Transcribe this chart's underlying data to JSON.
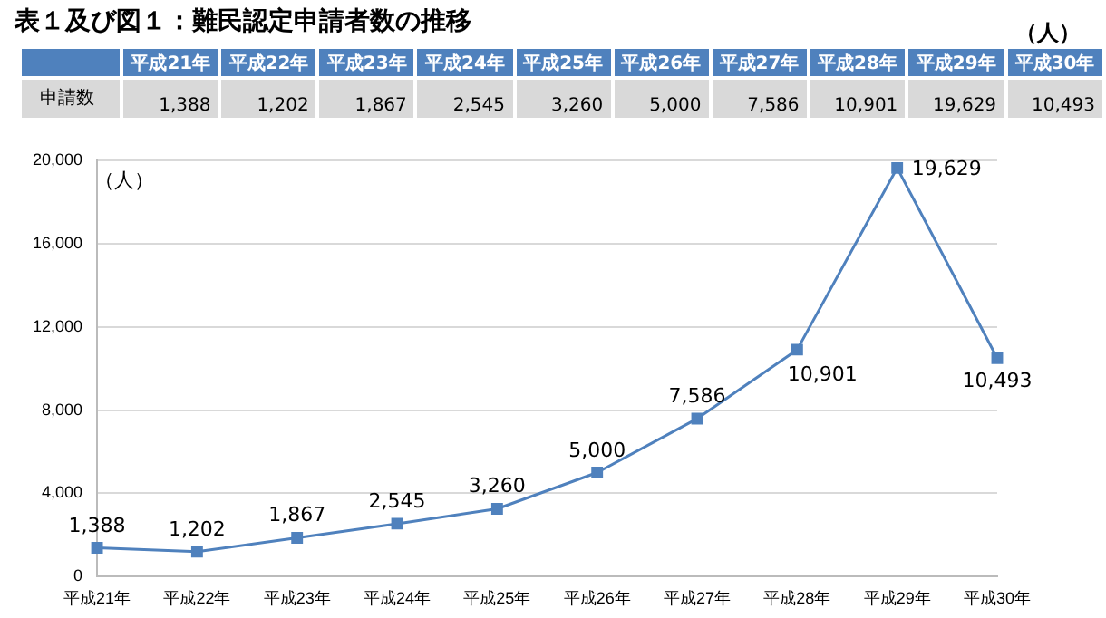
{
  "chart_data": {
    "type": "line",
    "title": "表１及び図１：難民認定申請者数の推移",
    "ylabel": "（人）",
    "annotations": [
      "（人）",
      "申請数"
    ],
    "categories": [
      "平成21年",
      "平成22年",
      "平成23年",
      "平成24年",
      "平成25年",
      "平成26年",
      "平成27年",
      "平成28年",
      "平成29年",
      "平成30年"
    ],
    "series": [
      {
        "color": "#4f81bd",
        "values": [
          1388,
          1202,
          1867,
          2545,
          3260,
          5000,
          7586,
          10901,
          19629,
          10493
        ],
        "value_labels": [
          "1,388",
          "1,202",
          "1,867",
          "2,545",
          "3,260",
          "5,000",
          "7,586",
          "10,901",
          "19,629",
          "10,493"
        ]
      }
    ],
    "ylim": [
      0,
      20000
    ],
    "yticks": [
      {
        "value": 0,
        "label": "0"
      },
      {
        "value": 4000,
        "label": "4,000"
      },
      {
        "value": 8000,
        "label": "8,000"
      },
      {
        "value": 12000,
        "label": "12,000"
      },
      {
        "value": 16000,
        "label": "16,000"
      },
      {
        "value": 20000,
        "label": "20,000"
      }
    ],
    "grid": "y",
    "marker": "square",
    "line_style": "solid",
    "legend": false
  }
}
